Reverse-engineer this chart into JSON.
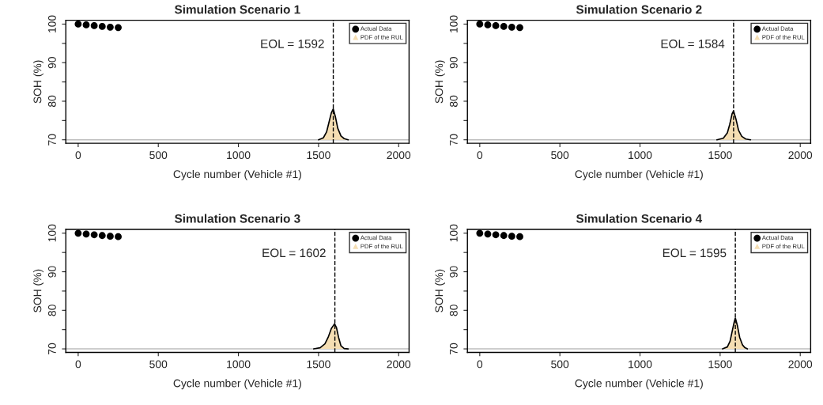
{
  "chart_data": [
    {
      "type": "scatter",
      "title": "Simulation Scenario 1",
      "xlabel": "Cycle number (Vehicle #1)",
      "ylabel": "SOH (%)",
      "xlim": [
        -77,
        2065
      ],
      "ylim": [
        69.1,
        101.0
      ],
      "xticks": [
        0,
        500,
        1000,
        1500,
        2000
      ],
      "yticks": [
        70,
        {
          "value": 75,
          "label": null
        },
        80,
        {
          "value": 85,
          "label": null
        },
        90,
        {
          "value": 95,
          "label": null
        },
        100
      ],
      "legend": "top right",
      "grid": false,
      "series": [
        {
          "name": "Actual Data",
          "marker": "circle",
          "color": "#000000",
          "x": [
            0,
            50,
            100,
            150,
            200,
            250
          ],
          "values": [
            100.0,
            99.8,
            99.6,
            99.4,
            99.2,
            99.1
          ]
        },
        {
          "name": "PDF of the RUL",
          "type": "area",
          "color": "#f5deb3",
          "x": [
            1500,
            1530,
            1550,
            1565,
            1580,
            1592,
            1605,
            1620,
            1640,
            1660,
            1685
          ],
          "values": [
            70,
            70.5,
            72,
            74.5,
            77,
            78,
            76,
            73,
            71,
            70.3,
            70
          ]
        }
      ],
      "ref_lines": [
        {
          "axis": "y",
          "value": 70,
          "color": "#bebebe",
          "line_style": "solid"
        },
        {
          "axis": "x",
          "value": 1592,
          "label": "EOL = 1592",
          "color": "#000000",
          "line_style": "dashed"
        }
      ]
    },
    {
      "type": "scatter",
      "title": "Simulation Scenario 2",
      "xlabel": "Cycle number (Vehicle #1)",
      "ylabel": "SOH (%)",
      "xlim": [
        -77,
        2065
      ],
      "ylim": [
        69.1,
        101.0
      ],
      "xticks": [
        0,
        500,
        1000,
        1500,
        2000
      ],
      "yticks": [
        70,
        {
          "value": 75,
          "label": null
        },
        80,
        {
          "value": 85,
          "label": null
        },
        90,
        {
          "value": 95,
          "label": null
        },
        100
      ],
      "legend": "top right",
      "grid": false,
      "series": [
        {
          "name": "Actual Data",
          "marker": "circle",
          "color": "#000000",
          "x": [
            0,
            50,
            100,
            150,
            200,
            250
          ],
          "values": [
            100.0,
            99.8,
            99.6,
            99.4,
            99.2,
            99.1
          ]
        },
        {
          "name": "PDF of the RUL",
          "type": "area",
          "color": "#f5deb3",
          "x": [
            1480,
            1520,
            1545,
            1560,
            1575,
            1584,
            1598,
            1615,
            1635,
            1660,
            1690
          ],
          "values": [
            70,
            70.4,
            71.8,
            74,
            76.8,
            77.5,
            75.5,
            72.5,
            70.9,
            70.2,
            70
          ]
        }
      ],
      "ref_lines": [
        {
          "axis": "y",
          "value": 70,
          "color": "#bebebe",
          "line_style": "solid"
        },
        {
          "axis": "x",
          "value": 1584,
          "label": "EOL = 1584",
          "color": "#000000",
          "line_style": "dashed"
        }
      ]
    },
    {
      "type": "scatter",
      "title": "Simulation Scenario 3",
      "xlabel": "Cycle number (Vehicle #1)",
      "ylabel": "SOH (%)",
      "xlim": [
        -77,
        2065
      ],
      "ylim": [
        69.1,
        101.0
      ],
      "xticks": [
        0,
        500,
        1000,
        1500,
        2000
      ],
      "yticks": [
        70,
        {
          "value": 75,
          "label": null
        },
        80,
        {
          "value": 85,
          "label": null
        },
        90,
        {
          "value": 95,
          "label": null
        },
        100
      ],
      "legend": "top right",
      "grid": false,
      "series": [
        {
          "name": "Actual Data",
          "marker": "circle",
          "color": "#000000",
          "x": [
            0,
            50,
            100,
            150,
            200,
            250
          ],
          "values": [
            100.0,
            99.8,
            99.6,
            99.4,
            99.2,
            99.1
          ]
        },
        {
          "name": "PDF of the RUL",
          "type": "area",
          "color": "#f5deb3",
          "x": [
            1470,
            1510,
            1540,
            1560,
            1580,
            1600,
            1612,
            1625,
            1640,
            1660,
            1685
          ],
          "values": [
            70,
            70.3,
            71.3,
            73,
            75.3,
            76.5,
            75.5,
            73,
            70.8,
            70.1,
            70
          ]
        }
      ],
      "ref_lines": [
        {
          "axis": "y",
          "value": 70,
          "color": "#bebebe",
          "line_style": "solid"
        },
        {
          "axis": "x",
          "value": 1602,
          "label": "EOL = 1602",
          "color": "#000000",
          "line_style": "dashed"
        }
      ]
    },
    {
      "type": "scatter",
      "title": "Simulation Scenario 4",
      "xlabel": "Cycle number (Vehicle #1)",
      "ylabel": "SOH (%)",
      "xlim": [
        -77,
        2065
      ],
      "ylim": [
        69.1,
        101.0
      ],
      "xticks": [
        0,
        500,
        1000,
        1500,
        2000
      ],
      "yticks": [
        70,
        {
          "value": 75,
          "label": null
        },
        80,
        {
          "value": 85,
          "label": null
        },
        90,
        {
          "value": 95,
          "label": null
        },
        100
      ],
      "legend": "top right",
      "grid": false,
      "series": [
        {
          "name": "Actual Data",
          "marker": "circle",
          "color": "#000000",
          "x": [
            0,
            50,
            100,
            150,
            200,
            250
          ],
          "values": [
            100.0,
            99.8,
            99.6,
            99.4,
            99.2,
            99.1
          ]
        },
        {
          "name": "PDF of the RUL",
          "type": "area",
          "color": "#f5deb3",
          "x": [
            1515,
            1545,
            1562,
            1575,
            1588,
            1595,
            1608,
            1622,
            1640,
            1655,
            1670
          ],
          "values": [
            70,
            70.5,
            72,
            74.5,
            77,
            78,
            76,
            73,
            71,
            70.3,
            70
          ]
        }
      ],
      "ref_lines": [
        {
          "axis": "y",
          "value": 70,
          "color": "#bebebe",
          "line_style": "solid"
        },
        {
          "axis": "x",
          "value": 1595,
          "label": "EOL = 1595",
          "color": "#000000",
          "line_style": "dashed"
        }
      ]
    }
  ]
}
